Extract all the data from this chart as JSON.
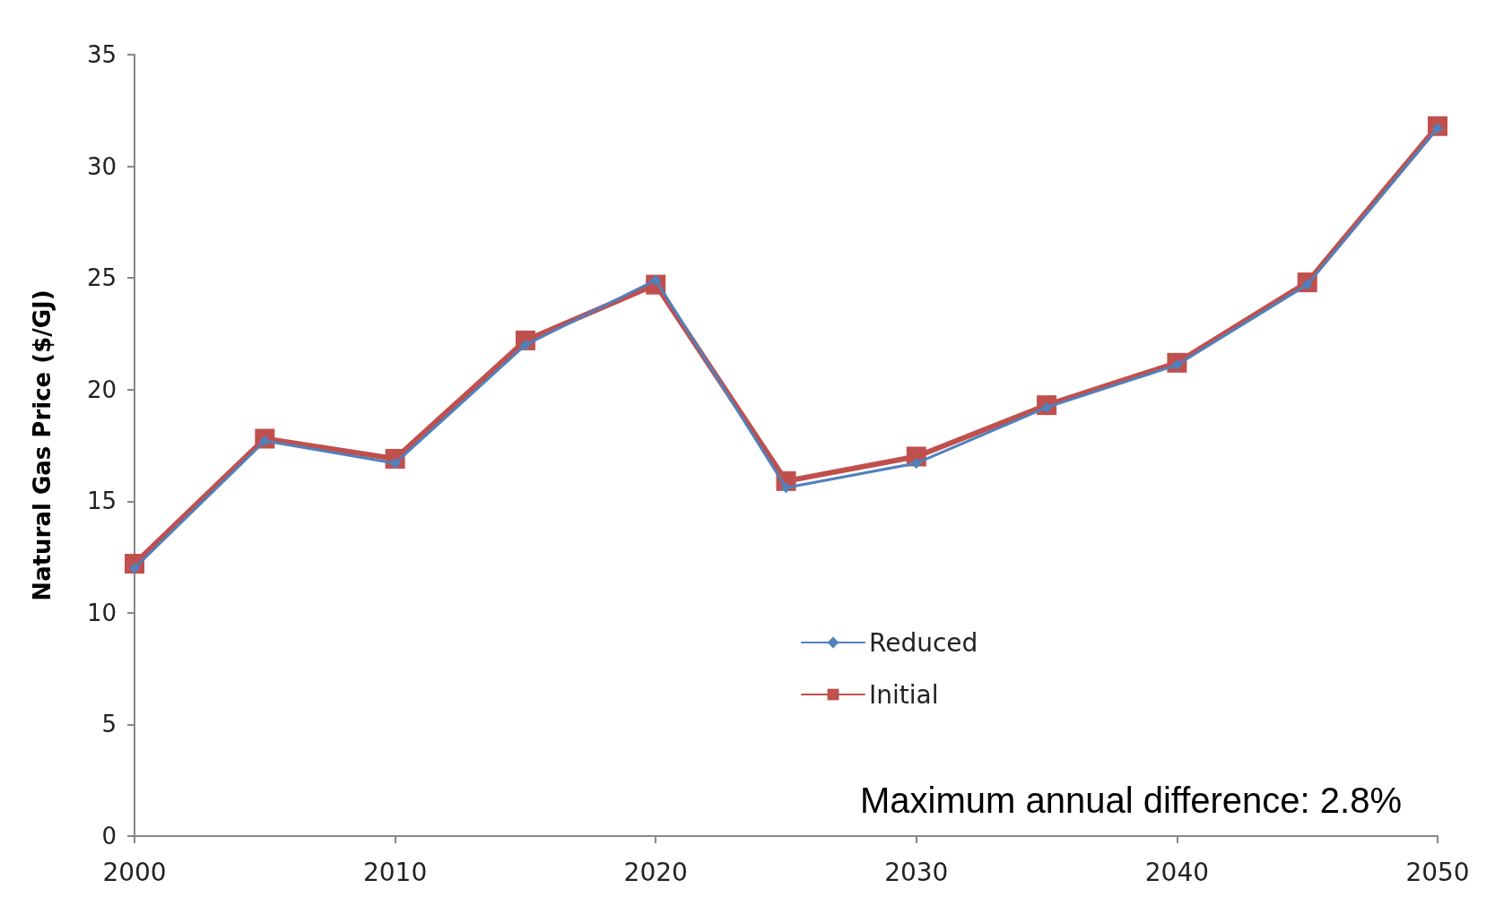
{
  "chart_data": {
    "type": "line",
    "ylabel": "Natural Gas Price ($/GJ)",
    "x": [
      2000,
      2005,
      2010,
      2015,
      2020,
      2025,
      2030,
      2035,
      2040,
      2045,
      2050
    ],
    "series": [
      {
        "name": "Reduced",
        "color": "#4f81bd",
        "marker": "diamond",
        "values": [
          12.0,
          17.7,
          16.7,
          22.0,
          24.9,
          15.6,
          16.7,
          19.2,
          21.1,
          24.7,
          31.7
        ]
      },
      {
        "name": "Initial",
        "color": "#c0504d",
        "marker": "square",
        "values": [
          12.2,
          17.8,
          16.9,
          22.2,
          24.7,
          15.9,
          17.0,
          19.3,
          21.2,
          24.8,
          31.8
        ]
      }
    ],
    "xlim": [
      2000,
      2050
    ],
    "xticks": [
      2000,
      2010,
      2020,
      2030,
      2040,
      2050
    ],
    "ylim": [
      0,
      35
    ],
    "yticks": [
      0,
      5,
      10,
      15,
      20,
      25,
      30,
      35
    ],
    "grid": false,
    "legend": "bottom",
    "annotations": [
      "Maximum annual difference: 2.8%"
    ]
  }
}
